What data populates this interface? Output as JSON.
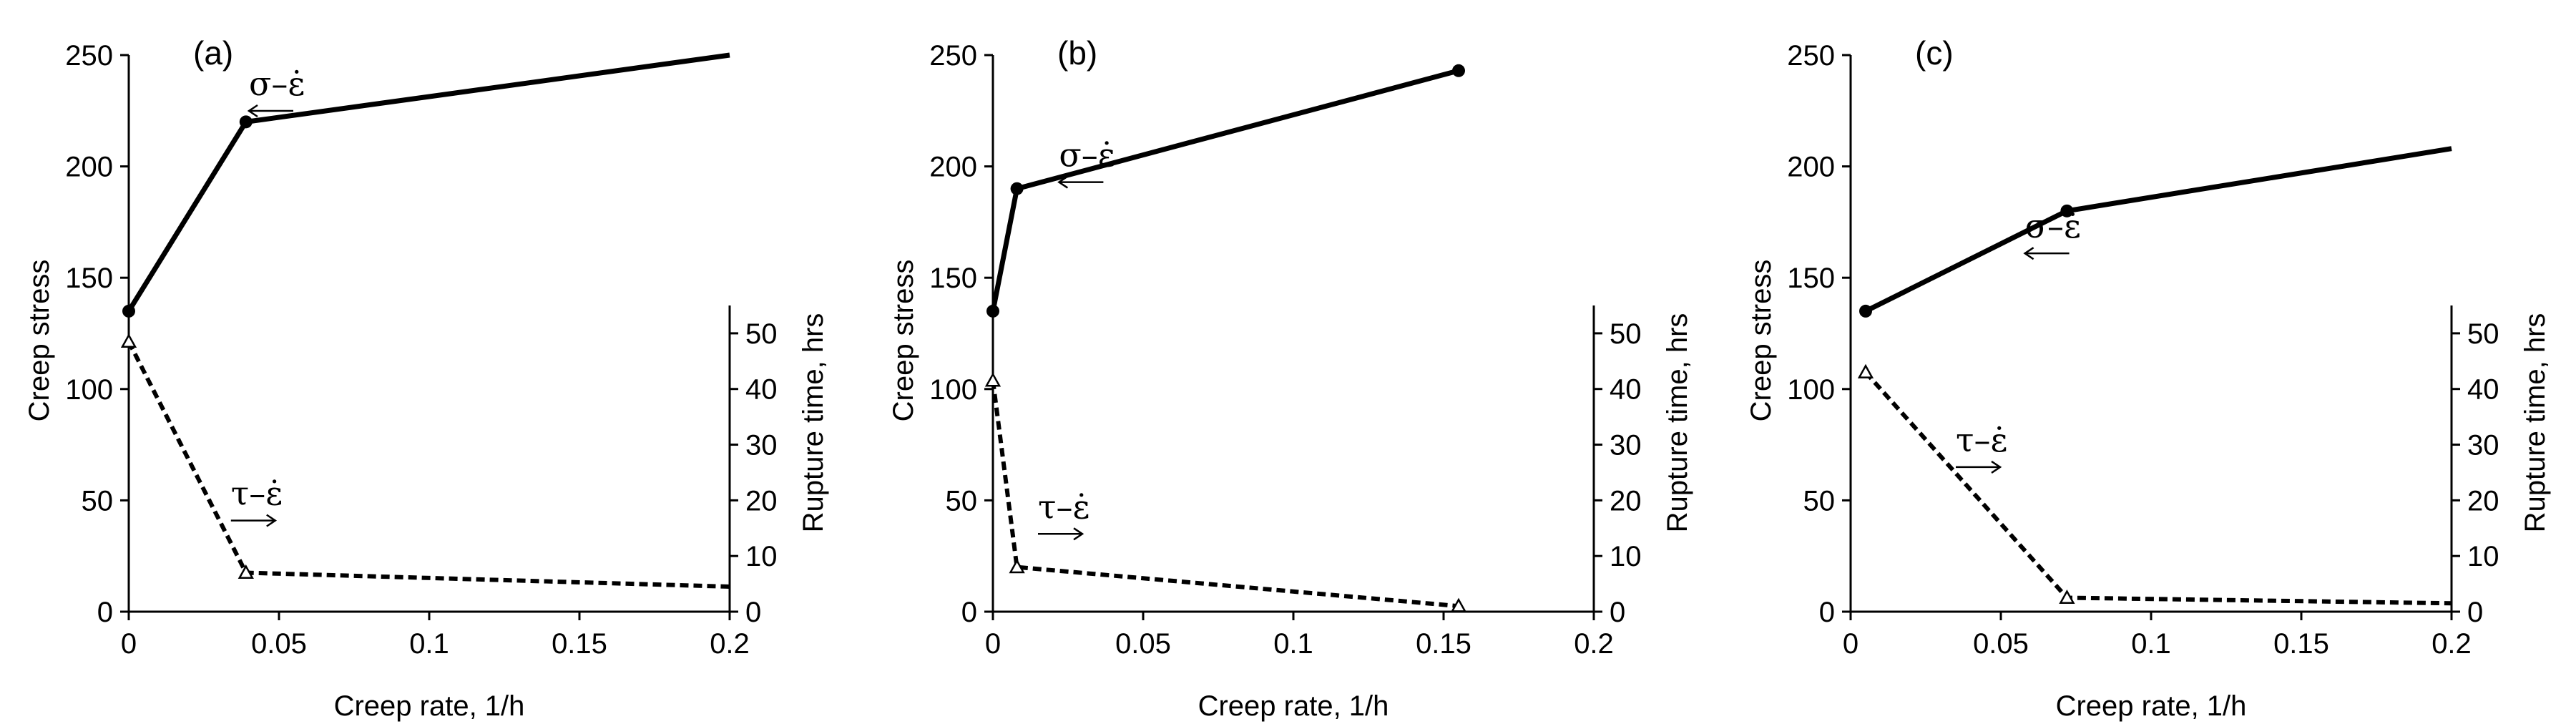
{
  "chart_data": [
    {
      "type": "line",
      "panel_label": "(a)",
      "xlabel": "Creep rate, 1/h",
      "ylabel": "Creep stress",
      "y2label": "Rupture time, hrs",
      "xlim": [
        0,
        0.2
      ],
      "ylim": [
        0,
        250
      ],
      "y2lim": [
        0,
        55
      ],
      "x_ticks": [
        "0",
        "0.05",
        "0.1",
        "0.15",
        "0.2"
      ],
      "y_ticks": [
        "0",
        "50",
        "100",
        "150",
        "200",
        "250"
      ],
      "y2_ticks": [
        "0",
        "10",
        "20",
        "30",
        "40",
        "50"
      ],
      "series": [
        {
          "name": "σ–ε̇",
          "axis": "left",
          "style": "solid",
          "marker": "circle",
          "x": [
            0,
            0.039,
            0.2
          ],
          "y": [
            135,
            220,
            250
          ]
        },
        {
          "name": "τ–ε̇",
          "axis": "right",
          "style": "dashed",
          "marker": "triangle",
          "x": [
            0,
            0.039,
            0.2
          ],
          "y": [
            48.5,
            7,
            4.5
          ]
        }
      ],
      "annotations": [
        {
          "text": "σ–ε̇",
          "arrow": "left",
          "x": 0.04,
          "y": 232
        },
        {
          "text": "τ–ε̇",
          "arrow": "right",
          "x": 0.034,
          "y": 48
        }
      ]
    },
    {
      "type": "line",
      "panel_label": "(b)",
      "xlabel": "Creep rate, 1/h",
      "ylabel": "Creep stress",
      "y2label": "Rupture time, hrs",
      "xlim": [
        0,
        0.2
      ],
      "ylim": [
        0,
        250
      ],
      "y2lim": [
        0,
        55
      ],
      "x_ticks": [
        "0",
        "0.05",
        "0.1",
        "0.15",
        "0.2"
      ],
      "y_ticks": [
        "0",
        "50",
        "100",
        "150",
        "200",
        "250"
      ],
      "y2_ticks": [
        "0",
        "10",
        "20",
        "30",
        "40",
        "50"
      ],
      "series": [
        {
          "name": "σ–ε̇",
          "axis": "left",
          "style": "solid",
          "marker": "circle",
          "x": [
            0,
            0.008,
            0.155
          ],
          "y": [
            135,
            190,
            243
          ]
        },
        {
          "name": "τ–ε̇",
          "axis": "right",
          "style": "dashed",
          "marker": "triangle",
          "x": [
            0,
            0.008,
            0.155
          ],
          "y": [
            41.5,
            8,
            1
          ]
        }
      ],
      "annotations": [
        {
          "text": "σ–ε̇",
          "arrow": "left",
          "x": 0.022,
          "y": 200
        },
        {
          "text": "τ–ε̇",
          "arrow": "right",
          "x": 0.015,
          "y": 42
        }
      ]
    },
    {
      "type": "line",
      "panel_label": "(c)",
      "xlabel": "Creep rate, 1/h",
      "ylabel": "Creep stress",
      "y2label": "Rupture time, hrs",
      "xlim": [
        0,
        0.2
      ],
      "ylim": [
        0,
        250
      ],
      "y2lim": [
        0,
        55
      ],
      "x_ticks": [
        "0",
        "0.05",
        "0.1",
        "0.15",
        "0.2"
      ],
      "y_ticks": [
        "0",
        "50",
        "100",
        "150",
        "200",
        "250"
      ],
      "y2_ticks": [
        "0",
        "10",
        "20",
        "30",
        "40",
        "50"
      ],
      "series": [
        {
          "name": "σ–ε̇",
          "axis": "left",
          "style": "solid",
          "marker": "circle",
          "x": [
            0.005,
            0.072,
            0.2
          ],
          "y": [
            135,
            180,
            208
          ]
        },
        {
          "name": "τ–ε̇",
          "axis": "right",
          "style": "dashed",
          "marker": "triangle",
          "x": [
            0.005,
            0.072,
            0.2
          ],
          "y": [
            43,
            2.5,
            1.5
          ]
        }
      ],
      "annotations": [
        {
          "text": "σ–ε̇",
          "arrow": "left",
          "x": 0.058,
          "y": 168
        },
        {
          "text": "τ–ε̇",
          "arrow": "right",
          "x": 0.035,
          "y": 72
        }
      ]
    }
  ]
}
